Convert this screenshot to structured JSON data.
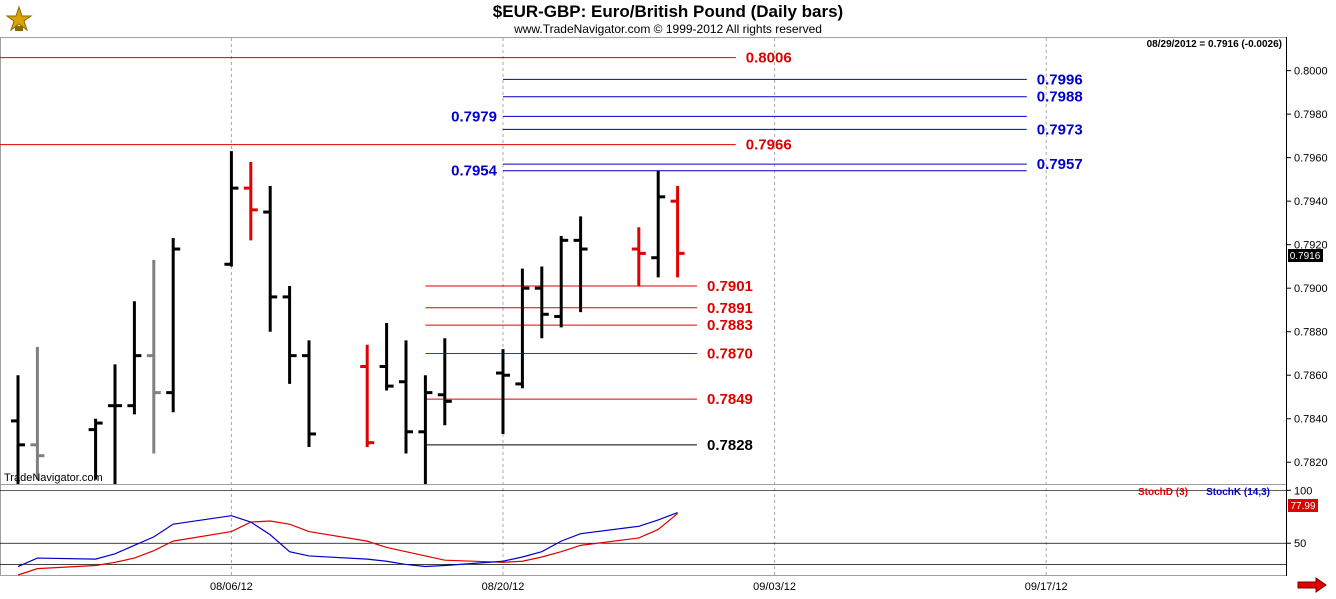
{
  "header": {
    "title": "$EUR-GBP:  Euro/British Pound  (Daily bars)",
    "copyright": "www.TradeNavigator.com © 1999-2012 All rights reserved",
    "last_quote": "08/29/2012 = 0.7916 (-0.0026)",
    "watermark": "TradeNavigator.com"
  },
  "chart_data": [
    {
      "type": "ohlc-bar",
      "title": "$EUR-GBP:  Euro/British Pound  (Daily bars)",
      "ylim": [
        0.781,
        0.8015
      ],
      "y_ticks": [
        "0.8000",
        "0.7980",
        "0.7960",
        "0.7940",
        "0.7920",
        "0.7900",
        "0.7880",
        "0.7860",
        "0.7840",
        "0.7820"
      ],
      "x_ticks": [
        "08/06/12",
        "08/20/12",
        "09/03/12",
        "09/17/12"
      ],
      "last_price_label": "0.7916",
      "colors": {
        "up": "#000000",
        "down": "#e00000",
        "neutral": "#808080",
        "level_red": "#e00000",
        "level_blue": "#0000cc",
        "level_black": "#000000"
      },
      "bars": [
        {
          "date": "07/26/12",
          "open": 0.7839,
          "high": 0.786,
          "low": 0.781,
          "close": 0.7828,
          "color": "black"
        },
        {
          "date": "07/27/12",
          "open": 0.7828,
          "high": 0.7873,
          "low": 0.7812,
          "close": 0.7823,
          "color": "gray"
        },
        {
          "date": "07/30/12",
          "open": 0.7835,
          "high": 0.784,
          "low": 0.7812,
          "close": 0.7838,
          "color": "black"
        },
        {
          "date": "07/31/12",
          "open": 0.7846,
          "high": 0.7865,
          "low": 0.781,
          "close": 0.7846,
          "color": "black"
        },
        {
          "date": "08/01/12",
          "open": 0.7846,
          "high": 0.7894,
          "low": 0.7842,
          "close": 0.7869,
          "color": "black"
        },
        {
          "date": "08/02/12",
          "open": 0.7869,
          "high": 0.7913,
          "low": 0.7824,
          "close": 0.7852,
          "color": "gray"
        },
        {
          "date": "08/03/12",
          "open": 0.7852,
          "high": 0.7923,
          "low": 0.7843,
          "close": 0.7918,
          "color": "black"
        },
        {
          "date": "08/06/12",
          "open": 0.7911,
          "high": 0.7963,
          "low": 0.791,
          "close": 0.7946,
          "color": "black"
        },
        {
          "date": "08/07/12",
          "open": 0.7946,
          "high": 0.7958,
          "low": 0.7922,
          "close": 0.7936,
          "color": "red"
        },
        {
          "date": "08/08/12",
          "open": 0.7935,
          "high": 0.7947,
          "low": 0.788,
          "close": 0.7896,
          "color": "black"
        },
        {
          "date": "08/09/12",
          "open": 0.7896,
          "high": 0.7901,
          "low": 0.7856,
          "close": 0.7869,
          "color": "black"
        },
        {
          "date": "08/10/12",
          "open": 0.7869,
          "high": 0.7876,
          "low": 0.7827,
          "close": 0.7833,
          "color": "black"
        },
        {
          "date": "08/13/12",
          "open": 0.7864,
          "high": 0.7874,
          "low": 0.7827,
          "close": 0.7829,
          "color": "red"
        },
        {
          "date": "08/14/12",
          "open": 0.7864,
          "high": 0.7884,
          "low": 0.7853,
          "close": 0.7855,
          "color": "black"
        },
        {
          "date": "08/15/12",
          "open": 0.7857,
          "high": 0.7876,
          "low": 0.7824,
          "close": 0.7834,
          "color": "black"
        },
        {
          "date": "08/16/12",
          "open": 0.7834,
          "high": 0.786,
          "low": 0.781,
          "close": 0.7852,
          "color": "black"
        },
        {
          "date": "08/17/12",
          "open": 0.7851,
          "high": 0.7877,
          "low": 0.7837,
          "close": 0.7848,
          "color": "black"
        },
        {
          "date": "08/20/12",
          "open": 0.7861,
          "high": 0.7872,
          "low": 0.7833,
          "close": 0.786,
          "color": "black"
        },
        {
          "date": "08/21/12",
          "open": 0.7856,
          "high": 0.7909,
          "low": 0.7854,
          "close": 0.79,
          "color": "black"
        },
        {
          "date": "08/22/12",
          "open": 0.79,
          "high": 0.791,
          "low": 0.7877,
          "close": 0.7888,
          "color": "black"
        },
        {
          "date": "08/23/12",
          "open": 0.7887,
          "high": 0.7924,
          "low": 0.7882,
          "close": 0.7922,
          "color": "black"
        },
        {
          "date": "08/24/12",
          "open": 0.7922,
          "high": 0.7933,
          "low": 0.7889,
          "close": 0.7918,
          "color": "black"
        },
        {
          "date": "08/27/12",
          "open": 0.7918,
          "high": 0.7928,
          "low": 0.7901,
          "close": 0.7916,
          "color": "red"
        },
        {
          "date": "08/28/12",
          "open": 0.7914,
          "high": 0.7954,
          "low": 0.7905,
          "close": 0.7942,
          "color": "black"
        },
        {
          "date": "08/29/12",
          "open": 0.794,
          "high": 0.7947,
          "low": 0.7905,
          "close": 0.7916,
          "color": "red"
        }
      ],
      "levels": [
        {
          "value": 0.8006,
          "label": "0.8006",
          "color": "red",
          "from": "07/23/12",
          "to": "09/01/12",
          "label_side": "right"
        },
        {
          "value": 0.7996,
          "label": "0.7996",
          "color": "blue",
          "from": "08/20/12",
          "to": "09/16/12",
          "label_side": "right"
        },
        {
          "value": 0.7988,
          "label": "0.7988",
          "color": "blue",
          "from": "08/20/12",
          "to": "09/16/12",
          "label_side": "right"
        },
        {
          "value": 0.7979,
          "label": "0.7979",
          "color": "blue",
          "from": "08/20/12",
          "to": "09/16/12",
          "label_side": "left"
        },
        {
          "value": 0.7973,
          "label": "0.7973",
          "color": "blue",
          "from": "08/20/12",
          "to": "09/16/12",
          "label_side": "right"
        },
        {
          "value": 0.7966,
          "label": "0.7966",
          "color": "red",
          "from": "07/23/12",
          "to": "09/01/12",
          "label_side": "right"
        },
        {
          "value": 0.7957,
          "label": "0.7957",
          "color": "blue",
          "from": "08/20/12",
          "to": "09/16/12",
          "label_side": "right"
        },
        {
          "value": 0.7954,
          "label": "0.7954",
          "color": "blue",
          "from": "08/20/12",
          "to": "09/16/12",
          "label_side": "left"
        },
        {
          "value": 0.7901,
          "label": "0.7901",
          "color": "red",
          "from": "08/16/12",
          "to": "08/30/12",
          "label_side": "right"
        },
        {
          "value": 0.7891,
          "label": "0.7891",
          "color": "red",
          "from": "08/16/12",
          "to": "08/30/12",
          "label_side": "right"
        },
        {
          "value": 0.7883,
          "label": "0.7883",
          "color": "red",
          "from": "08/16/12",
          "to": "08/30/12",
          "label_side": "right"
        },
        {
          "value": 0.787,
          "label": "0.7870",
          "color": "red",
          "from": "08/16/12",
          "to": "08/30/12",
          "label_side": "right"
        },
        {
          "value": 0.7849,
          "label": "0.7849",
          "color": "red",
          "from": "08/16/12",
          "to": "08/30/12",
          "label_side": "right"
        },
        {
          "value": 0.7828,
          "label": "0.7828",
          "color": "black",
          "from": "08/16/12",
          "to": "08/30/12",
          "label_side": "right"
        }
      ]
    },
    {
      "type": "line",
      "legend": [
        "StochD (3)",
        "StochK (14,3)"
      ],
      "legend_placement": "top-right",
      "ylim": [
        20,
        105
      ],
      "y_ticks": [
        "100",
        "50"
      ],
      "last_value_label": "77.99",
      "x": [
        "07/26/12",
        "07/27/12",
        "07/30/12",
        "07/31/12",
        "08/01/12",
        "08/02/12",
        "08/03/12",
        "08/06/12",
        "08/07/12",
        "08/08/12",
        "08/09/12",
        "08/10/12",
        "08/13/12",
        "08/14/12",
        "08/15/12",
        "08/16/12",
        "08/17/12",
        "08/20/12",
        "08/21/12",
        "08/22/12",
        "08/23/12",
        "08/24/12",
        "08/27/12",
        "08/28/12",
        "08/29/12"
      ],
      "series": [
        {
          "name": "StochD (3)",
          "color": "#e00000",
          "values": [
            20,
            26,
            29,
            32,
            36,
            43,
            52,
            61,
            70,
            71,
            68,
            61,
            52,
            46,
            42,
            38,
            34,
            32,
            33,
            37,
            42,
            48,
            55,
            63,
            78
          ]
        },
        {
          "name": "StochK (14,3)",
          "color": "#0000cc",
          "values": [
            28,
            36,
            35,
            40,
            48,
            56,
            68,
            76,
            70,
            58,
            42,
            38,
            35,
            33,
            30,
            28,
            29,
            33,
            37,
            42,
            52,
            59,
            66,
            72,
            79
          ]
        }
      ]
    }
  ]
}
